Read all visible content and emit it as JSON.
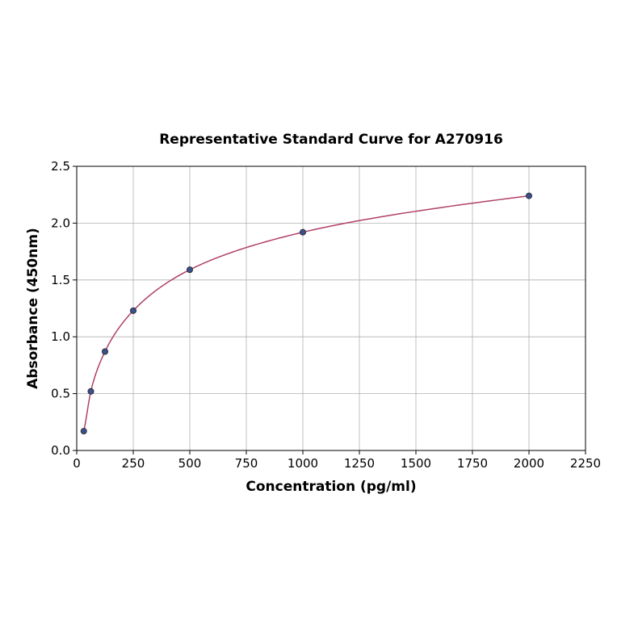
{
  "chart_data": {
    "type": "scatter",
    "title": "Representative Standard Curve for A270916",
    "xlabel": "Concentration (pg/ml)",
    "ylabel": "Absorbance (450nm)",
    "xlim": [
      0,
      2250
    ],
    "ylim": [
      0,
      2.5
    ],
    "x_ticks": [
      0,
      250,
      500,
      750,
      1000,
      1250,
      1500,
      1750,
      2000,
      2250
    ],
    "y_ticks": [
      0.0,
      0.5,
      1.0,
      1.5,
      2.0,
      2.5
    ],
    "x_tick_labels": [
      "0",
      "250",
      "500",
      "750",
      "1000",
      "1250",
      "1500",
      "1750",
      "2000",
      "2250"
    ],
    "y_tick_labels": [
      "0.0",
      "0.5",
      "1.0",
      "1.5",
      "2.0",
      "2.5"
    ],
    "grid": true,
    "legend": "none",
    "series": [
      {
        "type": "scatter",
        "x": [
          31.25,
          62.5,
          125,
          250,
          500,
          1000,
          2000
        ],
        "y": [
          0.17,
          0.52,
          0.87,
          1.23,
          1.59,
          1.92,
          2.24
        ]
      }
    ],
    "fit_curve": {
      "type": "line",
      "model": "log-log",
      "a": 0.7125,
      "b": 0.4035,
      "points_from_x": 30,
      "points_to_x": 2000
    },
    "colors": {
      "marker_fill": "#3b4f8c",
      "marker_edge": "#222222",
      "curve": "#b04068",
      "grid": "#b0b0b0",
      "axis": "#000000"
    }
  }
}
